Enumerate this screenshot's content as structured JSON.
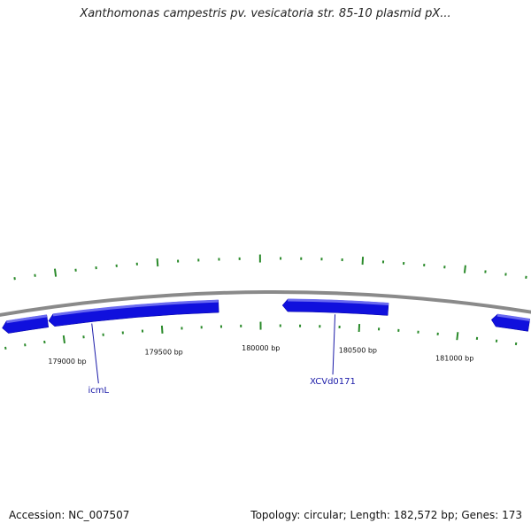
{
  "title": "Xanthomonas campestris pv. vesicatoria str. 85-10 plasmid pX...",
  "footer": {
    "accession": "Accession: NC_007507",
    "summary": "Topology: circular; Length: 182,572 bp; Genes: 173"
  },
  "view": {
    "start_bp": 178700,
    "end_bp": 181350
  },
  "colors": {
    "backbone": "#8a8a8a",
    "gene": "#1010dd",
    "gene_highlight": "#6a6af0",
    "tick": "#2a8a2a",
    "label_line": "#1a1aa8"
  },
  "ticks": {
    "labeled": [
      {
        "bp": 179000,
        "label": "179000 bp"
      },
      {
        "bp": 179500,
        "label": "179500 bp"
      },
      {
        "bp": 180000,
        "label": "180000 bp"
      },
      {
        "bp": 180500,
        "label": "180500 bp"
      },
      {
        "bp": 181000,
        "label": "181000 bp"
      }
    ]
  },
  "genes": [
    {
      "start_bp": 178700,
      "end_bp": 178930,
      "strand": "-"
    },
    {
      "start_bp": 178935,
      "end_bp": 179790,
      "strand": "-",
      "label": "icmL"
    },
    {
      "start_bp": 180110,
      "end_bp": 180640,
      "strand": "-",
      "label": "XCVd0171"
    },
    {
      "start_bp": 181160,
      "end_bp": 181350,
      "strand": "-"
    }
  ]
}
